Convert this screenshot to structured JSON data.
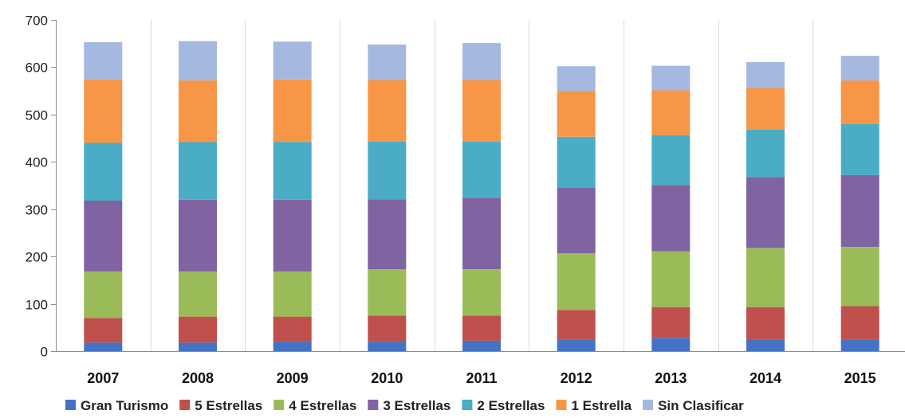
{
  "chart_data": {
    "type": "bar",
    "stacked": true,
    "categories": [
      "2007",
      "2008",
      "2009",
      "2010",
      "2011",
      "2012",
      "2013",
      "2014",
      "2015"
    ],
    "ylim": [
      0,
      700
    ],
    "yticks": [
      0,
      100,
      200,
      300,
      400,
      500,
      600,
      700
    ],
    "grid": "vertical lines between categories",
    "legend": "bottom",
    "series": [
      {
        "name": "Gran Turismo",
        "color": "#4472C4",
        "values": [
          18,
          18,
          20,
          20,
          22,
          25,
          28,
          25,
          25
        ]
      },
      {
        "name": "5 Estrellas",
        "color": "#C0504D",
        "values": [
          52,
          55,
          53,
          55,
          53,
          62,
          65,
          68,
          70
        ]
      },
      {
        "name": "4 Estrellas",
        "color": "#9BBB59",
        "values": [
          98,
          95,
          95,
          98,
          98,
          120,
          118,
          125,
          125
        ]
      },
      {
        "name": "3 Estrellas",
        "color": "#8064A2",
        "values": [
          150,
          152,
          152,
          148,
          150,
          138,
          140,
          150,
          152
        ]
      },
      {
        "name": "2 Estrellas",
        "color": "#4BACC6",
        "values": [
          122,
          122,
          122,
          122,
          120,
          108,
          105,
          100,
          108
        ]
      },
      {
        "name": "1 Estrella",
        "color": "#F79646",
        "values": [
          135,
          130,
          132,
          130,
          130,
          97,
          95,
          88,
          92
        ]
      },
      {
        "name": "Sin Clasificar",
        "color": "#A5B8E0",
        "values": [
          78,
          83,
          80,
          75,
          78,
          52,
          52,
          55,
          52
        ]
      }
    ]
  }
}
